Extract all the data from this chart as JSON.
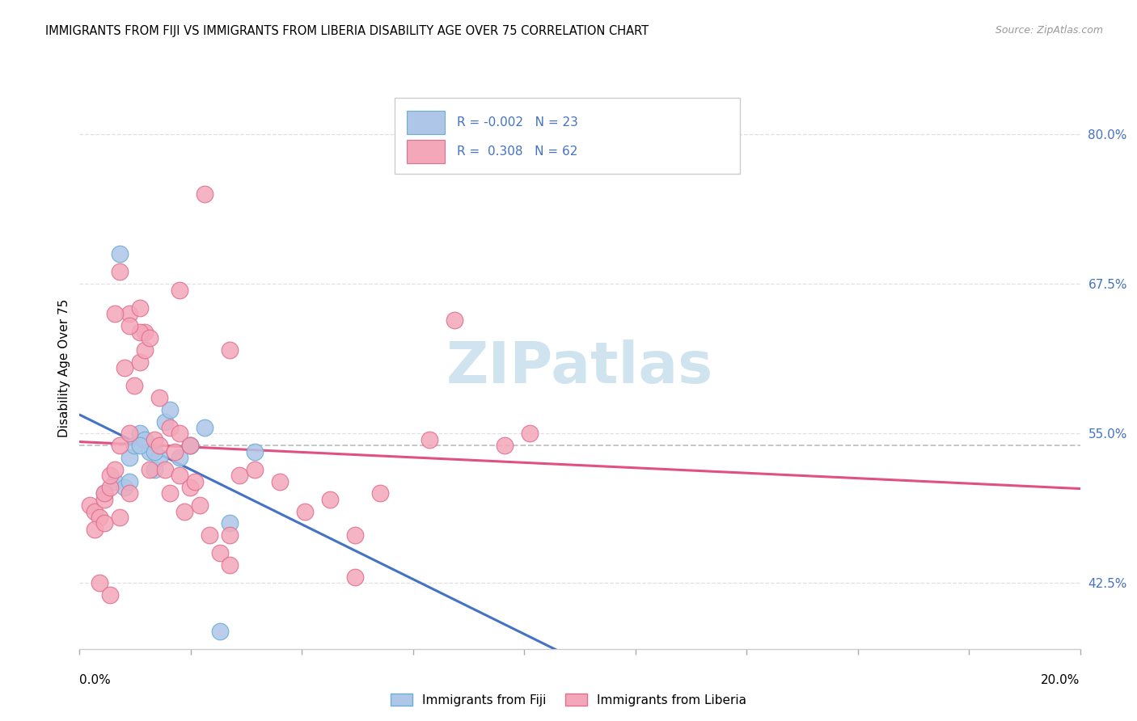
{
  "title": "IMMIGRANTS FROM FIJI VS IMMIGRANTS FROM LIBERIA DISABILITY AGE OVER 75 CORRELATION CHART",
  "source": "Source: ZipAtlas.com",
  "ylabel": "Disability Age Over 75",
  "y_ticks": [
    42.5,
    55.0,
    67.5,
    80.0
  ],
  "y_tick_labels": [
    "42.5%",
    "55.0%",
    "67.5%",
    "80.0%"
  ],
  "xlim": [
    0.0,
    20.0
  ],
  "ylim": [
    37.0,
    84.0
  ],
  "fiji_color": "#aec6e8",
  "fiji_edge_color": "#6baed6",
  "liberia_color": "#f4a7b9",
  "liberia_edge_color": "#e07090",
  "fiji_R": -0.002,
  "fiji_N": 23,
  "liberia_R": 0.308,
  "liberia_N": 62,
  "trend_fiji_color": "#4472c4",
  "trend_liberia_color": "#e05080",
  "dashed_line_color": "#bbbbbb",
  "dashed_line_y": 54.0,
  "watermark_text": "ZIPatlas",
  "watermark_color": "#d0e4f0",
  "grid_color": "#dddddd",
  "fiji_x": [
    0.5,
    0.7,
    0.9,
    1.0,
    1.1,
    1.2,
    1.3,
    1.4,
    1.5,
    1.6,
    1.7,
    1.8,
    2.0,
    2.2,
    2.5,
    3.5,
    0.8,
    1.0,
    1.2,
    1.5,
    2.8,
    3.0,
    2.2
  ],
  "fiji_y": [
    50.0,
    51.0,
    50.5,
    53.0,
    54.0,
    55.0,
    54.5,
    53.5,
    52.0,
    53.0,
    56.0,
    57.0,
    53.0,
    54.0,
    55.5,
    53.5,
    70.0,
    51.0,
    54.0,
    53.5,
    38.5,
    47.5,
    54.0
  ],
  "liberia_x": [
    0.2,
    0.3,
    0.4,
    0.5,
    0.5,
    0.6,
    0.6,
    0.7,
    0.8,
    0.8,
    0.9,
    1.0,
    1.0,
    1.1,
    1.2,
    1.3,
    1.3,
    1.4,
    1.5,
    1.6,
    1.7,
    1.8,
    1.9,
    2.0,
    2.1,
    2.2,
    2.3,
    2.4,
    2.6,
    2.8,
    3.0,
    3.2,
    3.5,
    4.0,
    4.5,
    5.0,
    5.5,
    6.0,
    7.0,
    8.5,
    0.4,
    0.6,
    0.8,
    1.0,
    1.2,
    1.4,
    1.6,
    1.8,
    2.0,
    2.2,
    2.5,
    3.0,
    0.3,
    0.5,
    0.7,
    1.0,
    1.2,
    2.0,
    3.0,
    5.5,
    9.0,
    7.5
  ],
  "liberia_y": [
    49.0,
    48.5,
    48.0,
    49.5,
    50.0,
    50.5,
    51.5,
    52.0,
    48.0,
    54.0,
    60.5,
    50.0,
    55.0,
    59.0,
    61.0,
    62.0,
    63.5,
    52.0,
    54.5,
    54.0,
    52.0,
    50.0,
    53.5,
    51.5,
    48.5,
    50.5,
    51.0,
    49.0,
    46.5,
    45.0,
    46.5,
    51.5,
    52.0,
    51.0,
    48.5,
    49.5,
    46.5,
    50.0,
    54.5,
    54.0,
    42.5,
    41.5,
    68.5,
    65.0,
    63.5,
    63.0,
    58.0,
    55.5,
    55.0,
    54.0,
    75.0,
    62.0,
    47.0,
    47.5,
    65.0,
    64.0,
    65.5,
    67.0,
    44.0,
    43.0,
    55.0,
    64.5
  ],
  "legend_fiji_label": "Immigrants from Fiji",
  "legend_liberia_label": "Immigrants from Liberia"
}
